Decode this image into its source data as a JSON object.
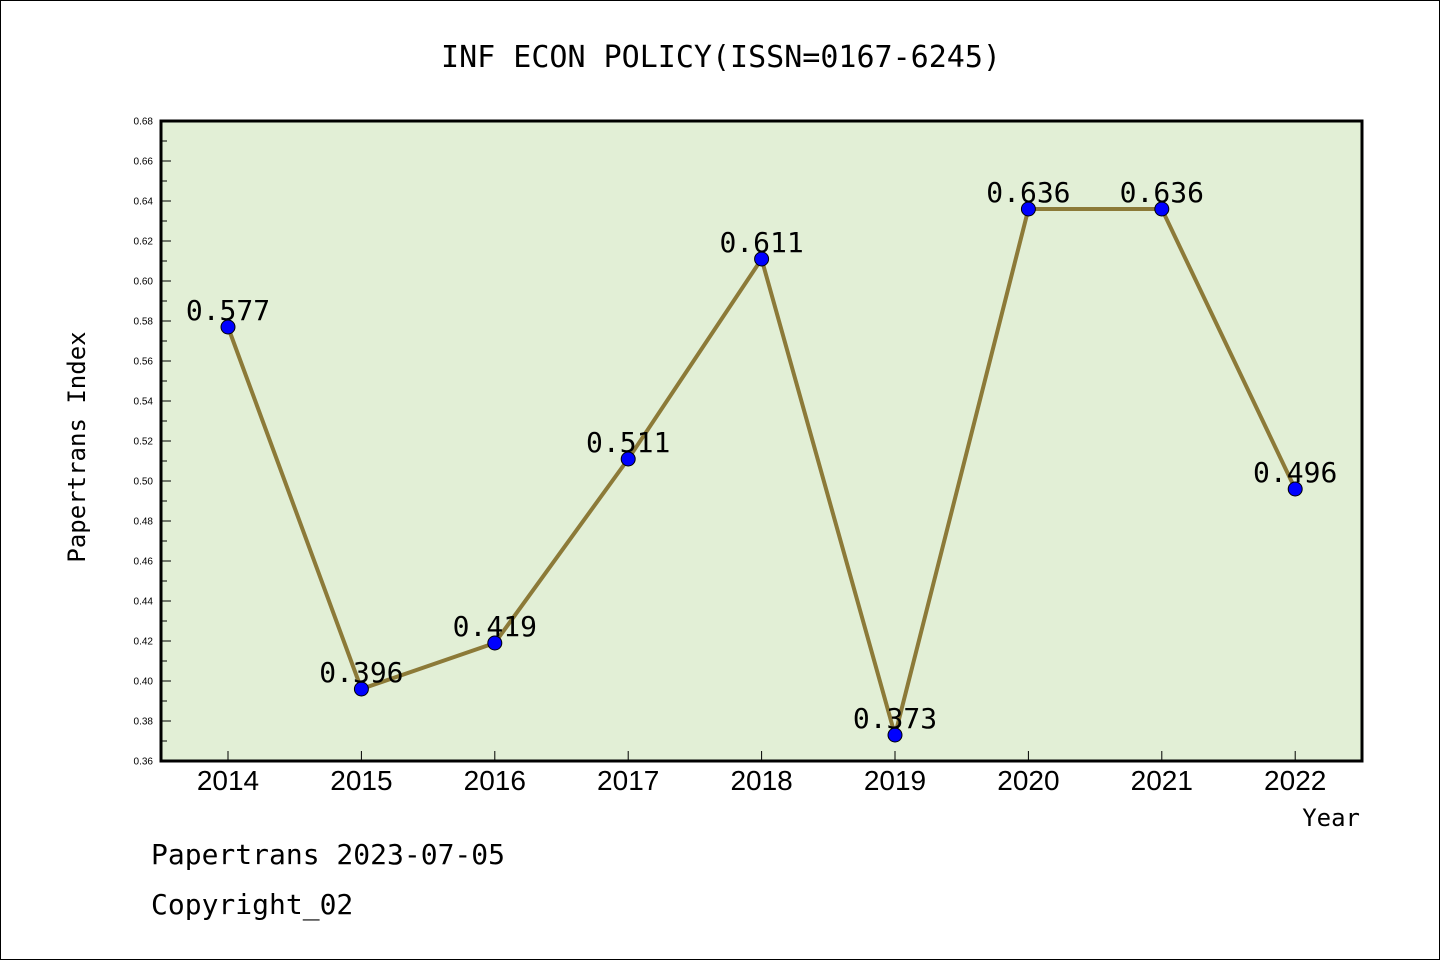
{
  "chart_data": {
    "type": "line",
    "title": "INF ECON POLICY(ISSN=0167-6245)",
    "xlabel": "Year",
    "ylabel": "Papertrans Index",
    "categories": [
      "2014",
      "2015",
      "2016",
      "2017",
      "2018",
      "2019",
      "2020",
      "2021",
      "2022"
    ],
    "series": [
      {
        "values": [
          0.577,
          0.396,
          0.419,
          0.511,
          0.611,
          0.373,
          0.636,
          0.636,
          0.496
        ],
        "labels": [
          "0.577",
          "0.396",
          "0.419",
          "0.511",
          "0.611",
          "0.373",
          "0.636",
          "0.636",
          "0.496"
        ]
      }
    ],
    "ylim": [
      0.36,
      0.68
    ],
    "yticks": [
      "0.36",
      "0.38",
      "0.40",
      "0.42",
      "0.44",
      "0.46",
      "0.48",
      "0.50",
      "0.52",
      "0.54",
      "0.56",
      "0.58",
      "0.60",
      "0.62",
      "0.64",
      "0.66",
      "0.68"
    ],
    "grid": false,
    "colors": {
      "plot_background": "#e2efd6",
      "line": "#8c7a38",
      "marker": "#0000ff"
    }
  },
  "footer": {
    "line1": "Papertrans 2023-07-05",
    "line2": "Copyright_02"
  }
}
